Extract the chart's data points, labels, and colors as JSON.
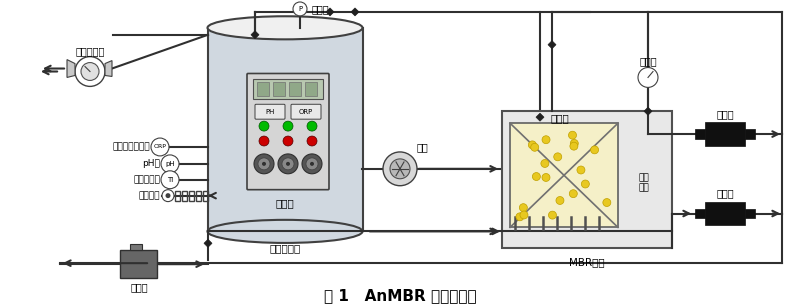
{
  "title": "图 1   AnMBR 中试装置图",
  "title_fontsize": 11,
  "bg_color": "#ffffff",
  "labels": {
    "gas_flowmeter": "气体流量计",
    "pressure_gauge": "压力表",
    "orp_label": "氧化还原电位计",
    "ph_label": "pH计",
    "temp_label": "温度传感器",
    "heater_label": "电加热器",
    "inlet_pump": "进水泵",
    "anaerobic": "厌氧反应器",
    "control_cabinet": "控制柜",
    "air_pump": "气泵",
    "membrane_module": "膜组件",
    "aeration_pipe": "曝气\n管线",
    "mbr_tank": "MBR膜池",
    "vacuum_gauge": "真空表",
    "product_pump": "产水泵",
    "sludge_pump": "污泥泵",
    "orp_circle": "ORP",
    "ph_circle": "pH",
    "ti_circle": "TI",
    "p_circle": "P"
  },
  "colors": {
    "tank_fill": "#d0d8e0",
    "tank_border": "#404040",
    "mbr_fill": "#e8e8e8",
    "mbr_border": "#505050",
    "membrane_fill": "#f5e88a",
    "membrane_border": "#808080",
    "control_fill": "#d5d5d5",
    "control_border": "#404040",
    "pump_fill": "#202020",
    "pipe_color": "#303030",
    "dot_color": "#e8c820",
    "green_dot": "#00bb00",
    "red_dot": "#cc0000",
    "heater_color": "#404040",
    "inlet_pump_fill": "#555555",
    "line_width": 1.5
  }
}
